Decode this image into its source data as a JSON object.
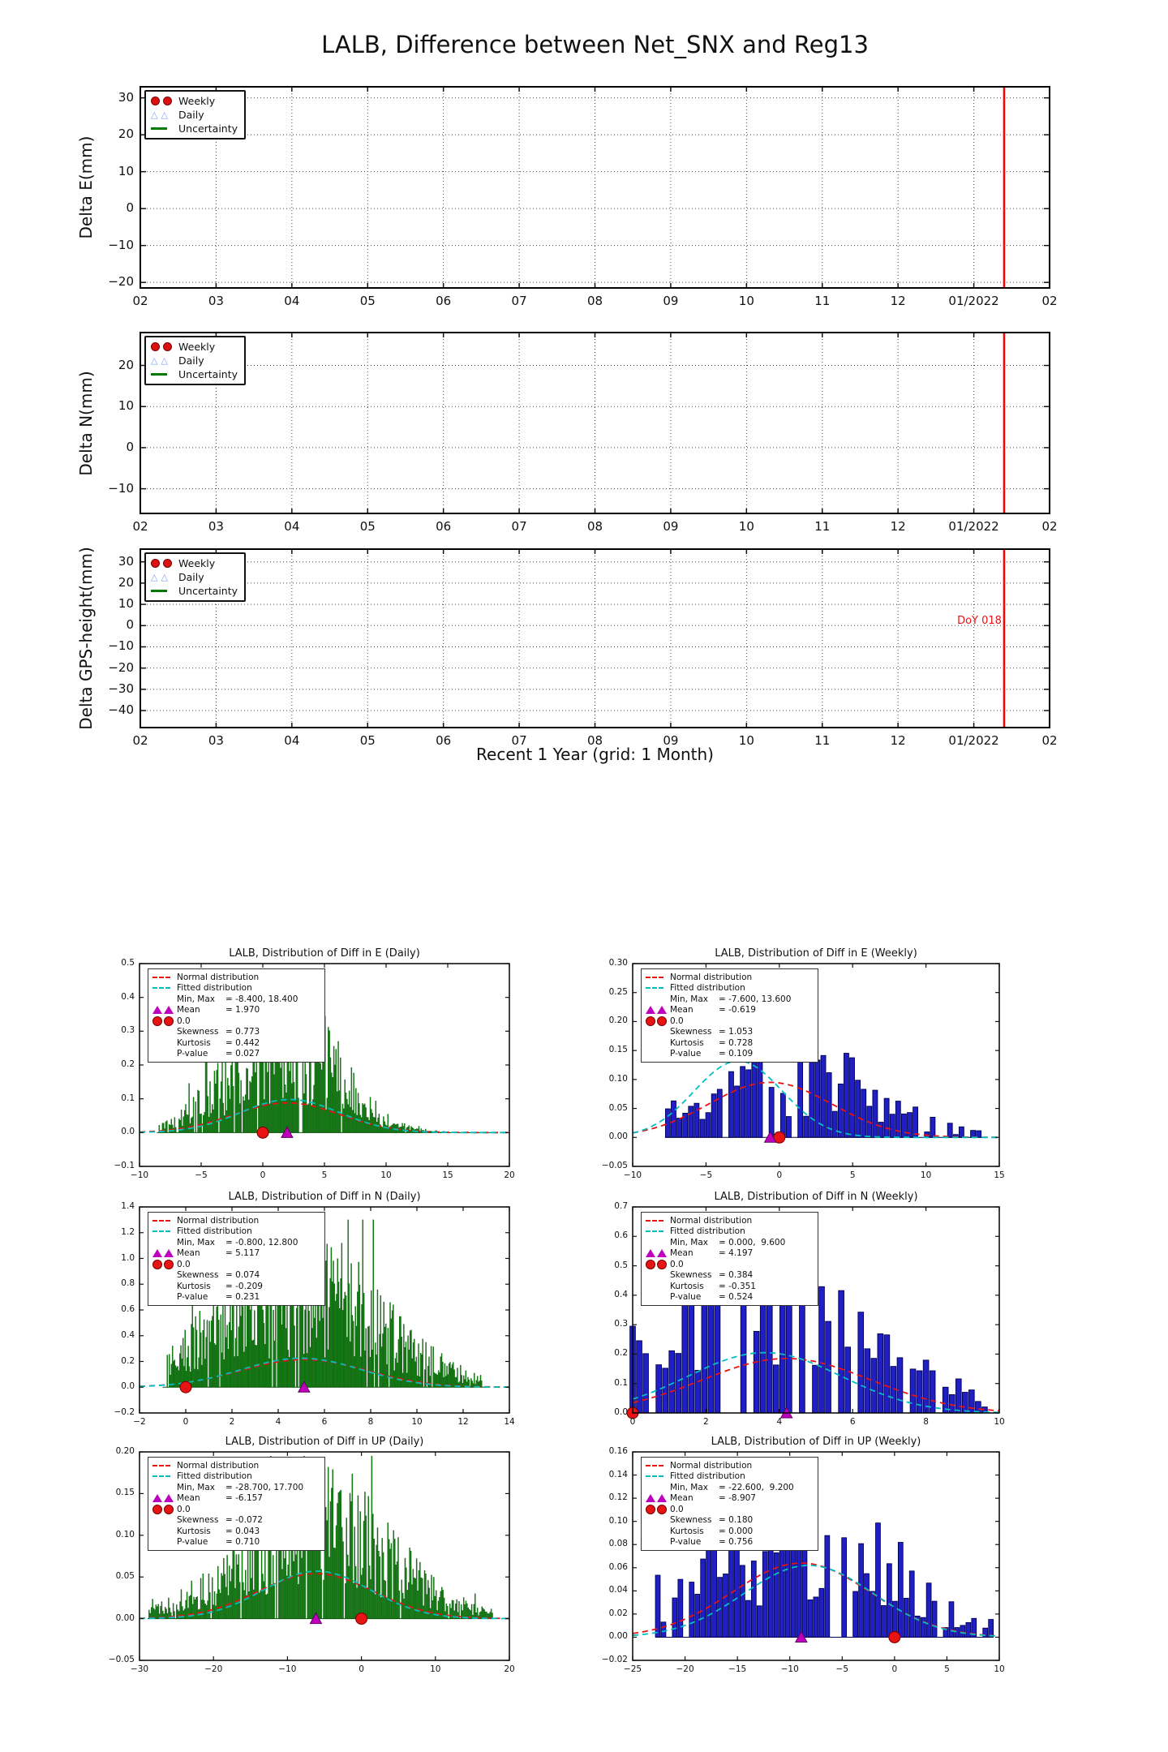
{
  "page": {
    "title": "LALB, Difference between Net_SNX and Reg13",
    "xlabel": "Recent 1 Year (grid: 1 Month)"
  },
  "colors": {
    "green_fill": "#0f8b0f",
    "green_edge": "#075407",
    "blue_fill": "#1f1fc4",
    "blue_edge": "#000050",
    "normal_curve": "#e81313",
    "fitted_curve": "#00bfbf",
    "mean_marker": "#bf00bf",
    "zero_marker": "#e81313",
    "event_line": "#ff0000",
    "grid": "#444444"
  },
  "top_legend": {
    "weekly": "Weekly",
    "daily": "Daily",
    "uncertainty": "Uncertainty"
  },
  "hist_legend_labels": {
    "normal": "Normal distribution",
    "fitted": "Fitted distribution",
    "min_max": "Min, Max",
    "mean": "Mean",
    "zero": "0.0",
    "skewness": "Skewness",
    "kurtosis": "Kurtosis",
    "pvalue": "P-value"
  },
  "chart_data": {
    "top_series_plots": {
      "type": "line",
      "note": "Three empty time-series panels sharing one x-axis of months; only grid, legend and a red event line at Day-of-Year 018 are drawn.",
      "xticks": [
        "02",
        "03",
        "04",
        "05",
        "06",
        "07",
        "08",
        "09",
        "10",
        "11",
        "12",
        "01/2022",
        "02"
      ],
      "event_line_frac": 0.95,
      "panels": [
        {
          "ylabel": "Delta E(mm)",
          "ylim": [
            -21.5,
            33
          ],
          "yticks": [
            "30",
            "20",
            "10",
            "0",
            "-10",
            "-20"
          ]
        },
        {
          "ylabel": "Delta N(mm)",
          "ylim": [
            -16,
            28
          ],
          "yticks": [
            "20",
            "10",
            "0",
            "-10"
          ]
        },
        {
          "ylabel": "Delta GPS-height(mm)",
          "ylim": [
            -48,
            36
          ],
          "yticks": [
            "30",
            "20",
            "10",
            "0",
            "-10",
            "-20",
            "-30",
            "-40"
          ],
          "annotation": "DoY 018",
          "annotation_value": 2
        }
      ]
    },
    "distributions": [
      {
        "type": "histogram",
        "title": "LALB, Distribution of Diff in E (Daily)",
        "color": "green",
        "xlim": [
          -10,
          20
        ],
        "xticks": [
          "-10",
          "-5",
          "0",
          "5",
          "10",
          "15",
          "20"
        ],
        "ylim": [
          -0.1,
          0.5
        ],
        "yticks": [
          "0.5",
          "0.4",
          "0.3",
          "0.2",
          "0.1",
          "0.0",
          "-0.1"
        ],
        "stats": {
          "min_max": "-8.400, 18.400",
          "mean": "1.970",
          "zero": "0.0",
          "skewness": "0.773",
          "kurtosis": "0.442",
          "pvalue": "0.027"
        },
        "markers": {
          "zero_x": 0,
          "mean_x": 1.97
        },
        "gen": {
          "seed": 11,
          "n": 300,
          "dmin": -8.4,
          "dmax": 18.4,
          "mode": 1.6,
          "spread": 3.4,
          "peak": 0.48,
          "zero_prob": 0.05
        },
        "curves": {
          "norm": {
            "mean": 1.97,
            "sd": 4.3,
            "amp": 0.088
          },
          "fit": {
            "mean": 2.2,
            "sd": 4.0,
            "amp": 0.098
          }
        }
      },
      {
        "type": "histogram",
        "title": "LALB, Distribution of Diff in E (Weekly)",
        "color": "blue",
        "xlim": [
          -10,
          15
        ],
        "xticks": [
          "-10",
          "-5",
          "0",
          "5",
          "10",
          "15"
        ],
        "ylim": [
          -0.05,
          0.3
        ],
        "yticks": [
          "0.30",
          "0.25",
          "0.20",
          "0.15",
          "0.10",
          "0.05",
          "0.00",
          "-0.05"
        ],
        "stats": {
          "min_max": "-7.600, 13.600",
          "mean": "-0.619",
          "zero": "0.0",
          "skewness": "1.053",
          "kurtosis": "0.728",
          "pvalue": "0.109"
        },
        "markers": {
          "zero_x": 0,
          "mean_x": -0.619
        },
        "gen": {
          "seed": 22,
          "n": 55,
          "dmin": -7.6,
          "dmax": 13.6,
          "mode": 0.5,
          "spread": 4.5,
          "peak": 0.19,
          "zero_prob": 0.16
        },
        "curves": {
          "norm": {
            "mean": -0.619,
            "sd": 4.2,
            "amp": 0.095
          },
          "fit": {
            "mean": -2.8,
            "sd": 3.0,
            "amp": 0.132
          }
        }
      },
      {
        "type": "histogram",
        "title": "LALB, Distribution of Diff in N (Daily)",
        "color": "green",
        "xlim": [
          -2,
          14
        ],
        "xticks": [
          "-2",
          "0",
          "2",
          "4",
          "6",
          "8",
          "10",
          "12",
          "14"
        ],
        "ylim": [
          -0.2,
          1.4
        ],
        "yticks": [
          "1.4",
          "1.2",
          "1.0",
          "0.8",
          "0.6",
          "0.4",
          "0.2",
          "0.0",
          "-0.2"
        ],
        "stats": {
          "min_max": "-0.800, 12.800",
          "mean": "5.117",
          "zero": "0.0",
          "skewness": "0.074",
          "kurtosis": "-0.209",
          "pvalue": "0.231"
        },
        "markers": {
          "zero_x": 0,
          "mean_x": 5.117
        },
        "gen": {
          "seed": 33,
          "n": 300,
          "dmin": -0.8,
          "dmax": 12.8,
          "mode": 4.9,
          "spread": 2.8,
          "peak": 1.3,
          "zero_prob": 0.04
        },
        "curves": {
          "norm": {
            "mean": 5.117,
            "sd": 2.7,
            "amp": 0.215
          },
          "fit": {
            "mean": 5.0,
            "sd": 2.6,
            "amp": 0.225
          }
        }
      },
      {
        "type": "histogram",
        "title": "LALB, Distribution of Diff in N (Weekly)",
        "color": "blue",
        "xlim": [
          0,
          10
        ],
        "xticks": [
          "0",
          "2",
          "4",
          "6",
          "8",
          "10"
        ],
        "ylim": [
          0,
          0.7
        ],
        "yticks": [
          "0.7",
          "0.6",
          "0.5",
          "0.4",
          "0.3",
          "0.2",
          "0.1",
          "0.0"
        ],
        "stats": {
          "min_max": "0.000,  9.600",
          "mean": "4.197",
          "zero": "0.0",
          "skewness": "0.384",
          "kurtosis": "-0.351",
          "pvalue": "0.524"
        },
        "markers": {
          "zero_x": 0,
          "mean_x": 4.197
        },
        "gen": {
          "seed": 44,
          "n": 55,
          "dmin": 0.0,
          "dmax": 9.6,
          "mode": 3.0,
          "spread": 2.6,
          "peak": 0.62,
          "zero_prob": 0.18
        },
        "curves": {
          "norm": {
            "mean": 4.197,
            "sd": 2.3,
            "amp": 0.185
          },
          "fit": {
            "mean": 3.6,
            "sd": 2.1,
            "amp": 0.205
          }
        }
      },
      {
        "type": "histogram",
        "title": "LALB, Distribution of Diff in UP (Daily)",
        "color": "green",
        "xlim": [
          -30,
          20
        ],
        "xticks": [
          "-30",
          "-20",
          "-10",
          "0",
          "10",
          "20"
        ],
        "ylim": [
          -0.05,
          0.2
        ],
        "yticks": [
          "0.20",
          "0.15",
          "0.10",
          "0.05",
          "0.00",
          "-0.05"
        ],
        "stats": {
          "min_max": "-28.700, 17.700",
          "mean": "-6.157",
          "zero": "0.0",
          "skewness": "-0.072",
          "kurtosis": "0.043",
          "pvalue": "0.710"
        },
        "markers": {
          "zero_x": 0,
          "mean_x": -6.157
        },
        "gen": {
          "seed": 55,
          "n": 300,
          "dmin": -28.7,
          "dmax": 17.7,
          "mode": -6.0,
          "spread": 8.0,
          "peak": 0.195,
          "zero_prob": 0.05
        },
        "curves": {
          "norm": {
            "mean": -6.157,
            "sd": 7.8,
            "amp": 0.054
          },
          "fit": {
            "mean": -6.0,
            "sd": 7.2,
            "amp": 0.057
          }
        }
      },
      {
        "type": "histogram",
        "title": "LALB, Distribution of Diff in UP (Weekly)",
        "color": "blue",
        "xlim": [
          -25,
          10
        ],
        "xticks": [
          "-25",
          "-20",
          "-15",
          "-10",
          "-5",
          "0",
          "5",
          "10"
        ],
        "ylim": [
          -0.02,
          0.16
        ],
        "yticks": [
          "0.16",
          "0.14",
          "0.12",
          "0.10",
          "0.08",
          "0.06",
          "0.04",
          "0.02",
          "0.00",
          "-0.02"
        ],
        "stats": {
          "min_max": "-22.600,  9.200",
          "mean": "-8.907",
          "zero": "0.0",
          "skewness": "0.180",
          "kurtosis": "0.000",
          "pvalue": "0.756"
        },
        "markers": {
          "zero_x": 0,
          "mean_x": -8.907
        },
        "gen": {
          "seed": 66,
          "n": 60,
          "dmin": -22.6,
          "dmax": 9.2,
          "mode": -8.5,
          "spread": 6.8,
          "peak": 0.158,
          "zero_prob": 0.16
        },
        "curves": {
          "norm": {
            "mean": -8.907,
            "sd": 6.6,
            "amp": 0.064
          },
          "fit": {
            "mean": -8.2,
            "sd": 6.2,
            "amp": 0.062
          }
        }
      }
    ]
  }
}
